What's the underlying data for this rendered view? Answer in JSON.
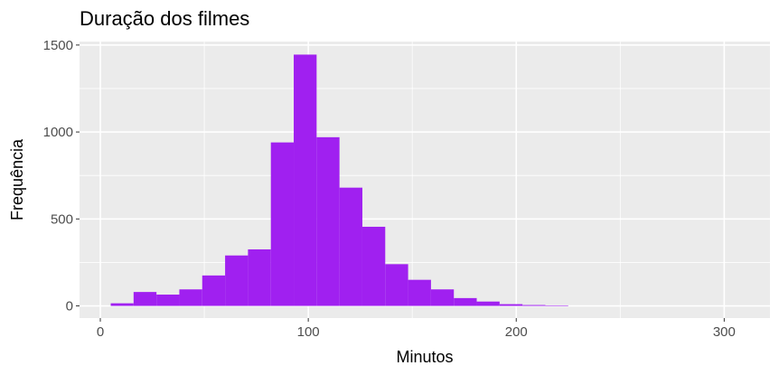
{
  "chart_data": {
    "type": "bar",
    "title": "Duração dos filmes",
    "xlabel": "Minutos",
    "ylabel": "Frequência",
    "xlim": [
      -10,
      322
    ],
    "ylim": [
      -70,
      1520
    ],
    "x_ticks": [
      0,
      100,
      200,
      300
    ],
    "y_ticks": [
      0,
      500,
      1000,
      1500
    ],
    "x_minor": [
      50,
      150,
      250
    ],
    "y_minor": [
      250,
      750,
      1250
    ],
    "grid": true,
    "legend": "none",
    "colors": {
      "bar": "#A020F0",
      "panel": "#EBEBEB",
      "grid": "#FFFFFF"
    },
    "bins": [
      {
        "x0": 5,
        "x1": 16,
        "count": 15
      },
      {
        "x0": 16,
        "x1": 27,
        "count": 80
      },
      {
        "x0": 27,
        "x1": 38,
        "count": 65
      },
      {
        "x0": 38,
        "x1": 49,
        "count": 95
      },
      {
        "x0": 49,
        "x1": 60,
        "count": 175
      },
      {
        "x0": 60,
        "x1": 71,
        "count": 290
      },
      {
        "x0": 71,
        "x1": 82,
        "count": 325
      },
      {
        "x0": 82,
        "x1": 93,
        "count": 940
      },
      {
        "x0": 93,
        "x1": 104,
        "count": 1445
      },
      {
        "x0": 104,
        "x1": 115,
        "count": 970
      },
      {
        "x0": 115,
        "x1": 126,
        "count": 680
      },
      {
        "x0": 126,
        "x1": 137,
        "count": 455
      },
      {
        "x0": 137,
        "x1": 148,
        "count": 240
      },
      {
        "x0": 148,
        "x1": 159,
        "count": 150
      },
      {
        "x0": 159,
        "x1": 170,
        "count": 95
      },
      {
        "x0": 170,
        "x1": 181,
        "count": 45
      },
      {
        "x0": 181,
        "x1": 192,
        "count": 25
      },
      {
        "x0": 192,
        "x1": 203,
        "count": 10
      },
      {
        "x0": 203,
        "x1": 214,
        "count": 5
      },
      {
        "x0": 214,
        "x1": 225,
        "count": 3
      }
    ]
  }
}
